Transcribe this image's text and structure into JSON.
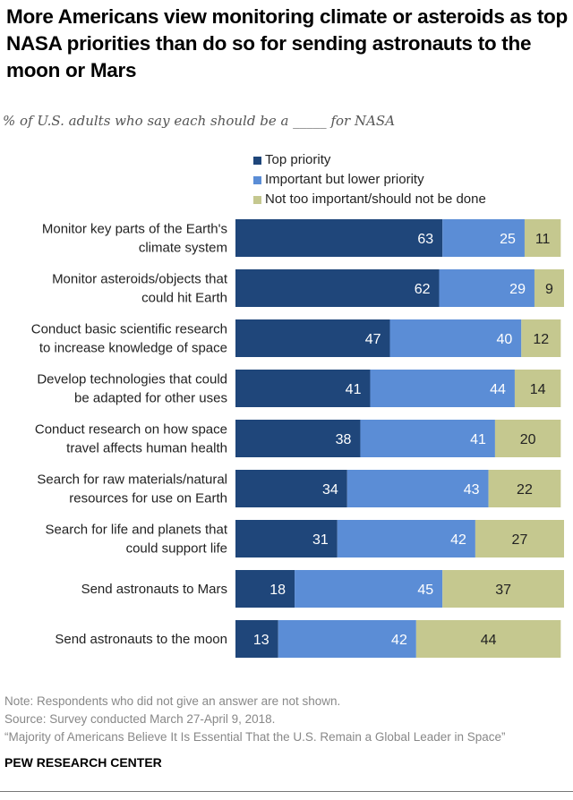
{
  "title": "More Americans view monitoring climate or asteroids as top NASA priorities than do so for sending astronauts to the moon or Mars",
  "subtitle": "% of U.S. adults who say each should be a _____ for NASA",
  "colors": {
    "top": "#1f467a",
    "important": "#5b8dd6",
    "not": "#c5c88f"
  },
  "chart_data": {
    "type": "bar",
    "orientation": "horizontal",
    "stacked": true,
    "title": "More Americans view monitoring climate or asteroids as top NASA priorities than do so for sending astronauts to the moon or Mars",
    "legend_position": "top",
    "categories": [
      "Monitor key parts of the Earth's climate system",
      "Monitor asteroids/objects that could hit Earth",
      "Conduct basic scientific research to increase knowledge of space",
      "Develop technologies that could be adapted for other uses",
      "Conduct research on how space travel affects human health",
      "Search for raw materials/natural resources for use on Earth",
      "Search for life and planets that could support life",
      "Send astronauts to Mars",
      "Send astronauts to the moon"
    ],
    "category_lines": [
      [
        "Monitor key parts of the Earth's",
        "climate system"
      ],
      [
        "Monitor asteroids/objects that",
        "could hit Earth"
      ],
      [
        "Conduct basic scientific research",
        "to increase knowledge of space"
      ],
      [
        "Develop technologies that could",
        "be adapted for other uses"
      ],
      [
        "Conduct research on how space",
        "travel affects human health"
      ],
      [
        "Search for raw materials/natural",
        "resources for use on Earth"
      ],
      [
        "Search for life and planets that",
        "could support life"
      ],
      [
        "Send astronauts to Mars"
      ],
      [
        "Send astronauts to the moon"
      ]
    ],
    "series": [
      {
        "name": "Top priority",
        "values": [
          63,
          62,
          47,
          41,
          38,
          34,
          31,
          18,
          13
        ]
      },
      {
        "name": "Important but lower priority",
        "values": [
          25,
          29,
          40,
          44,
          41,
          43,
          42,
          45,
          42
        ]
      },
      {
        "name": "Not too important/should not be done",
        "values": [
          11,
          9,
          12,
          14,
          20,
          22,
          27,
          37,
          44
        ]
      }
    ]
  },
  "footer": {
    "note": "Note: Respondents who did not give an answer are not shown.",
    "source": "Source: Survey conducted March 27-April 9, 2018.",
    "report": "“Majority of Americans Believe It Is Essential That the U.S. Remain a Global Leader in Space”",
    "brand": "PEW RESEARCH CENTER"
  }
}
